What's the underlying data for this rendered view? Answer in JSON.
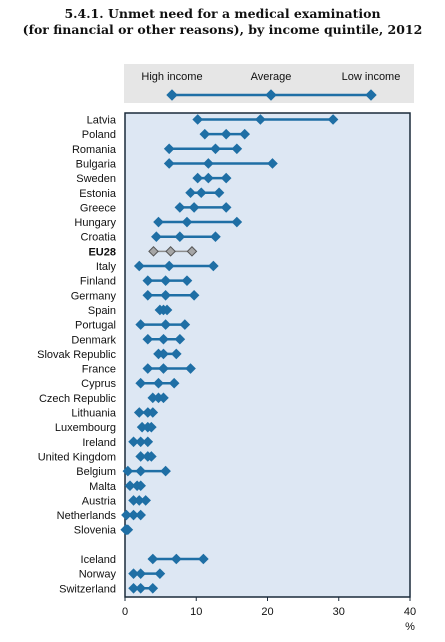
{
  "title": "5.4.1. Unmet need for a medical examination",
  "subtitle": "(for financial or other reasons), by income quintile, 2012",
  "legend": {
    "items": [
      {
        "label": "High income",
        "key": "high"
      },
      {
        "label": "Average",
        "key": "average"
      },
      {
        "label": "Low income",
        "key": "low"
      }
    ]
  },
  "chart_data": {
    "type": "scatter",
    "unit": "%",
    "xlim": [
      0,
      40
    ],
    "xticks": [
      "0",
      "10",
      "20",
      "30",
      "40"
    ],
    "grid": false,
    "legend_position": "top",
    "colors": {
      "marker": "#1f6fa5",
      "line": "#1f6fa5",
      "eu_marker": "#a6a6a6",
      "eu_line": "#8c8c8c",
      "plot_bg": "#dde7f3",
      "legend_bg": "#e6e6e6",
      "frame": "#1a2a3a"
    },
    "series_keys": [
      "high",
      "q2",
      "average",
      "q4",
      "low"
    ],
    "rows": [
      {
        "country": "Latvia",
        "values": [
          10.2,
          19.0,
          19.0,
          19.0,
          29.2
        ]
      },
      {
        "country": "Poland",
        "values": [
          11.2,
          14.2,
          14.2,
          14.2,
          16.8
        ]
      },
      {
        "country": "Romania",
        "values": [
          6.2,
          12.7,
          12.7,
          12.7,
          15.7
        ]
      },
      {
        "country": "Bulgaria",
        "values": [
          6.2,
          11.7,
          11.7,
          11.7,
          20.7
        ]
      },
      {
        "country": "Sweden",
        "values": [
          10.2,
          11.7,
          11.7,
          11.7,
          14.2
        ]
      },
      {
        "country": "Estonia",
        "values": [
          9.2,
          10.7,
          10.7,
          10.7,
          13.2
        ]
      },
      {
        "country": "Greece",
        "values": [
          7.7,
          9.7,
          9.7,
          9.7,
          14.2
        ]
      },
      {
        "country": "Hungary",
        "values": [
          4.7,
          8.7,
          8.7,
          8.7,
          15.7
        ]
      },
      {
        "country": "Croatia",
        "values": [
          4.4,
          7.7,
          7.7,
          7.7,
          12.7
        ]
      },
      {
        "country": "EU28",
        "eu": true,
        "values": [
          4.0,
          6.4,
          6.4,
          6.4,
          9.4
        ]
      },
      {
        "country": "Italy",
        "values": [
          2.0,
          6.2,
          6.2,
          6.2,
          12.4
        ]
      },
      {
        "country": "Finland",
        "values": [
          3.2,
          5.7,
          5.7,
          5.7,
          8.7
        ]
      },
      {
        "country": "Germany",
        "values": [
          3.2,
          5.7,
          5.7,
          5.7,
          9.7
        ]
      },
      {
        "country": "Spain",
        "values": [
          4.9,
          5.4,
          5.4,
          5.4,
          5.9
        ]
      },
      {
        "country": "Portugal",
        "values": [
          2.2,
          5.7,
          5.7,
          5.7,
          8.4
        ]
      },
      {
        "country": "Denmark",
        "values": [
          3.2,
          5.4,
          5.4,
          5.4,
          7.7
        ]
      },
      {
        "country": "Slovak Republic",
        "values": [
          4.7,
          5.4,
          5.4,
          5.4,
          7.2
        ]
      },
      {
        "country": "France",
        "values": [
          3.2,
          5.4,
          5.4,
          5.4,
          9.2
        ]
      },
      {
        "country": "Cyprus",
        "values": [
          2.2,
          4.7,
          4.7,
          4.7,
          6.9
        ]
      },
      {
        "country": "Czech Republic",
        "values": [
          3.9,
          4.7,
          4.7,
          4.7,
          5.4
        ]
      },
      {
        "country": "Lithuania",
        "values": [
          2.0,
          3.2,
          3.2,
          3.2,
          3.9
        ]
      },
      {
        "country": "Luxembourg",
        "values": [
          2.4,
          3.2,
          3.2,
          3.2,
          3.7
        ]
      },
      {
        "country": "Ireland",
        "values": [
          1.2,
          2.2,
          2.2,
          2.2,
          3.2
        ]
      },
      {
        "country": "United Kingdom",
        "values": [
          2.2,
          3.2,
          3.2,
          3.2,
          3.7
        ]
      },
      {
        "country": "Belgium",
        "values": [
          0.4,
          2.2,
          2.2,
          2.2,
          5.7
        ]
      },
      {
        "country": "Malta",
        "values": [
          0.7,
          1.7,
          1.7,
          1.7,
          2.2
        ]
      },
      {
        "country": "Austria",
        "values": [
          1.2,
          2.0,
          2.0,
          2.0,
          2.9
        ]
      },
      {
        "country": "Netherlands",
        "values": [
          0.2,
          1.2,
          1.2,
          1.2,
          2.2
        ]
      },
      {
        "country": "Slovenia",
        "values": [
          0.1,
          0.2,
          0.2,
          0.2,
          0.4
        ]
      },
      {
        "country": "Iceland",
        "values": [
          3.9,
          7.2,
          7.2,
          7.2,
          11.0
        ],
        "gap_before": true
      },
      {
        "country": "Norway",
        "values": [
          1.2,
          2.2,
          2.2,
          2.2,
          4.9
        ]
      },
      {
        "country": "Switzerland",
        "values": [
          1.2,
          2.2,
          2.2,
          2.2,
          3.9
        ]
      }
    ]
  }
}
